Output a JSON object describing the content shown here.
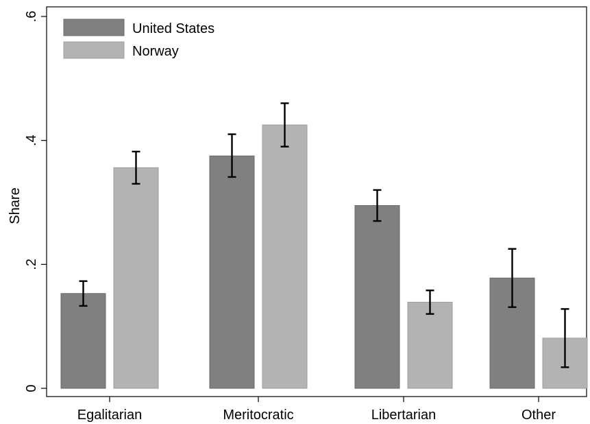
{
  "chart_data": {
    "type": "bar",
    "ylabel": "Share",
    "xlabel": "",
    "ylim": [
      0,
      0.6
    ],
    "yticks": [
      0,
      0.2,
      0.4,
      0.6
    ],
    "ytick_labels": [
      "0",
      ".2",
      ".4",
      ".6"
    ],
    "categories": [
      "Egalitarian",
      "Meritocratic",
      "Libertarian",
      "Other"
    ],
    "series": [
      {
        "name": "United States",
        "color": "#808080",
        "values": [
          0.153,
          0.375,
          0.295,
          0.178
        ],
        "ci_low": [
          0.133,
          0.341,
          0.27,
          0.131
        ],
        "ci_high": [
          0.173,
          0.41,
          0.32,
          0.225
        ]
      },
      {
        "name": "Norway",
        "color": "#b3b3b3",
        "values": [
          0.356,
          0.425,
          0.139,
          0.081
        ],
        "ci_low": [
          0.33,
          0.39,
          0.12,
          0.034
        ],
        "ci_high": [
          0.382,
          0.46,
          0.158,
          0.128
        ]
      }
    ],
    "legend_position": "top-left",
    "grid": false
  }
}
